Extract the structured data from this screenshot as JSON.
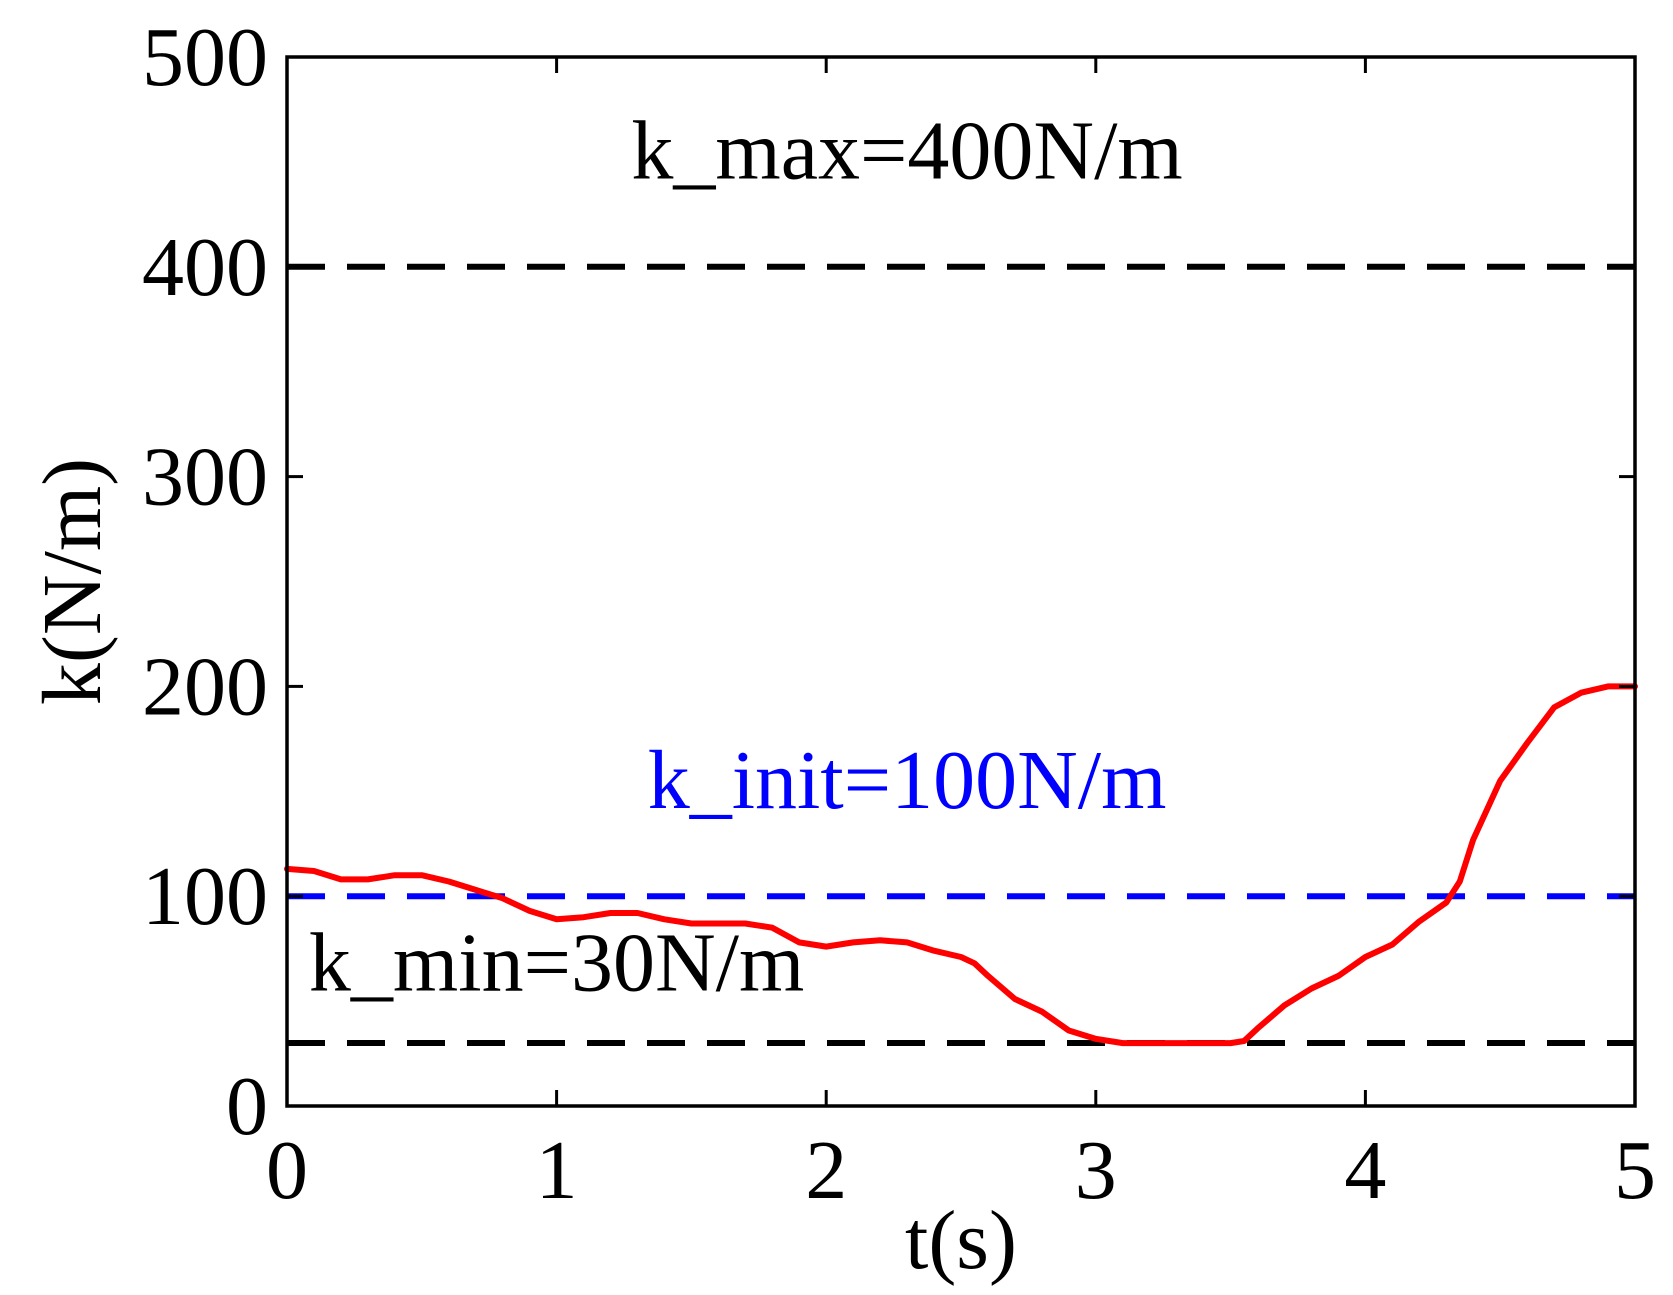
{
  "chart_data": {
    "type": "line",
    "title": "",
    "xlabel": "t(s)",
    "ylabel": "k(N/m)",
    "xlim": [
      0,
      5
    ],
    "ylim": [
      0,
      500
    ],
    "xticks": [
      0,
      1,
      2,
      3,
      4,
      5
    ],
    "yticks": [
      0,
      100,
      200,
      300,
      400,
      500
    ],
    "xtick_labels": [
      "0",
      "1",
      "2",
      "3",
      "4",
      "5"
    ],
    "ytick_labels": [
      "0",
      "100",
      "200",
      "300",
      "400",
      "500"
    ],
    "grid": false,
    "series": [
      {
        "name": "k",
        "color": "#ff0000",
        "style": "solid",
        "x": [
          0,
          0.1,
          0.2,
          0.3,
          0.4,
          0.5,
          0.6,
          0.7,
          0.8,
          0.9,
          1.0,
          1.1,
          1.2,
          1.3,
          1.4,
          1.5,
          1.6,
          1.7,
          1.8,
          1.9,
          2.0,
          2.1,
          2.2,
          2.3,
          2.4,
          2.5,
          2.55,
          2.6,
          2.7,
          2.8,
          2.9,
          3.0,
          3.1,
          3.2,
          3.3,
          3.4,
          3.5,
          3.55,
          3.6,
          3.7,
          3.8,
          3.9,
          4.0,
          4.1,
          4.2,
          4.3,
          4.35,
          4.4,
          4.5,
          4.6,
          4.7,
          4.8,
          4.9,
          5.0
        ],
        "y": [
          113,
          112,
          108,
          108,
          110,
          110,
          107,
          103,
          99,
          93,
          89,
          90,
          92,
          92,
          89,
          87,
          87,
          87,
          85,
          78,
          76,
          78,
          79,
          78,
          74,
          71,
          68,
          62,
          51,
          45,
          36,
          32,
          30,
          30,
          30,
          30,
          30,
          31,
          37,
          48,
          56,
          62,
          71,
          77,
          88,
          97,
          107,
          127,
          155,
          173,
          190,
          197,
          200,
          200
        ]
      }
    ],
    "reference_lines": [
      {
        "name": "k_max",
        "y": 400,
        "color": "#000000",
        "style": "dashed"
      },
      {
        "name": "k_init",
        "y": 100,
        "color": "#0000ff",
        "style": "dashed"
      },
      {
        "name": "k_min",
        "y": 30,
        "color": "#000000",
        "style": "dashed"
      }
    ],
    "annotations": [
      {
        "text": "k_max=400N/m",
        "color": "#000000",
        "anchor_x": 2.3,
        "anchor_y": 442
      },
      {
        "text": "k_init=100N/m",
        "color": "#0000ff",
        "anchor_x": 2.3,
        "anchor_y": 142
      },
      {
        "text": "k_min=30N/m",
        "color": "#000000",
        "anchor_x": 1.0,
        "anchor_y": 55
      }
    ]
  }
}
